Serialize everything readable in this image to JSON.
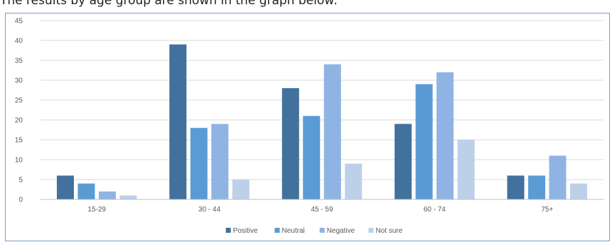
{
  "intro_text": "The results by age group are shown in the graph below:",
  "chart_data": {
    "type": "bar",
    "title": "",
    "xlabel": "",
    "ylabel": "",
    "categories": [
      "15-29",
      "30 - 44",
      "45 - 59",
      "60 - 74",
      "75+"
    ],
    "series": [
      {
        "name": "Positive",
        "values": [
          6,
          39,
          28,
          19,
          6
        ],
        "color": "#41719c"
      },
      {
        "name": "Neutral",
        "values": [
          4,
          18,
          21,
          29,
          6
        ],
        "color": "#5b9bd5"
      },
      {
        "name": "Negative",
        "values": [
          2,
          19,
          34,
          32,
          11
        ],
        "color": "#8fb4e3"
      },
      {
        "name": "Not sure",
        "values": [
          1,
          5,
          9,
          15,
          4
        ],
        "color": "#bdd0ea"
      }
    ],
    "ylim": [
      0,
      45
    ],
    "yticks": [
      0,
      5,
      10,
      15,
      20,
      25,
      30,
      35,
      40,
      45
    ],
    "grid": true,
    "legend": "bottom-center"
  }
}
